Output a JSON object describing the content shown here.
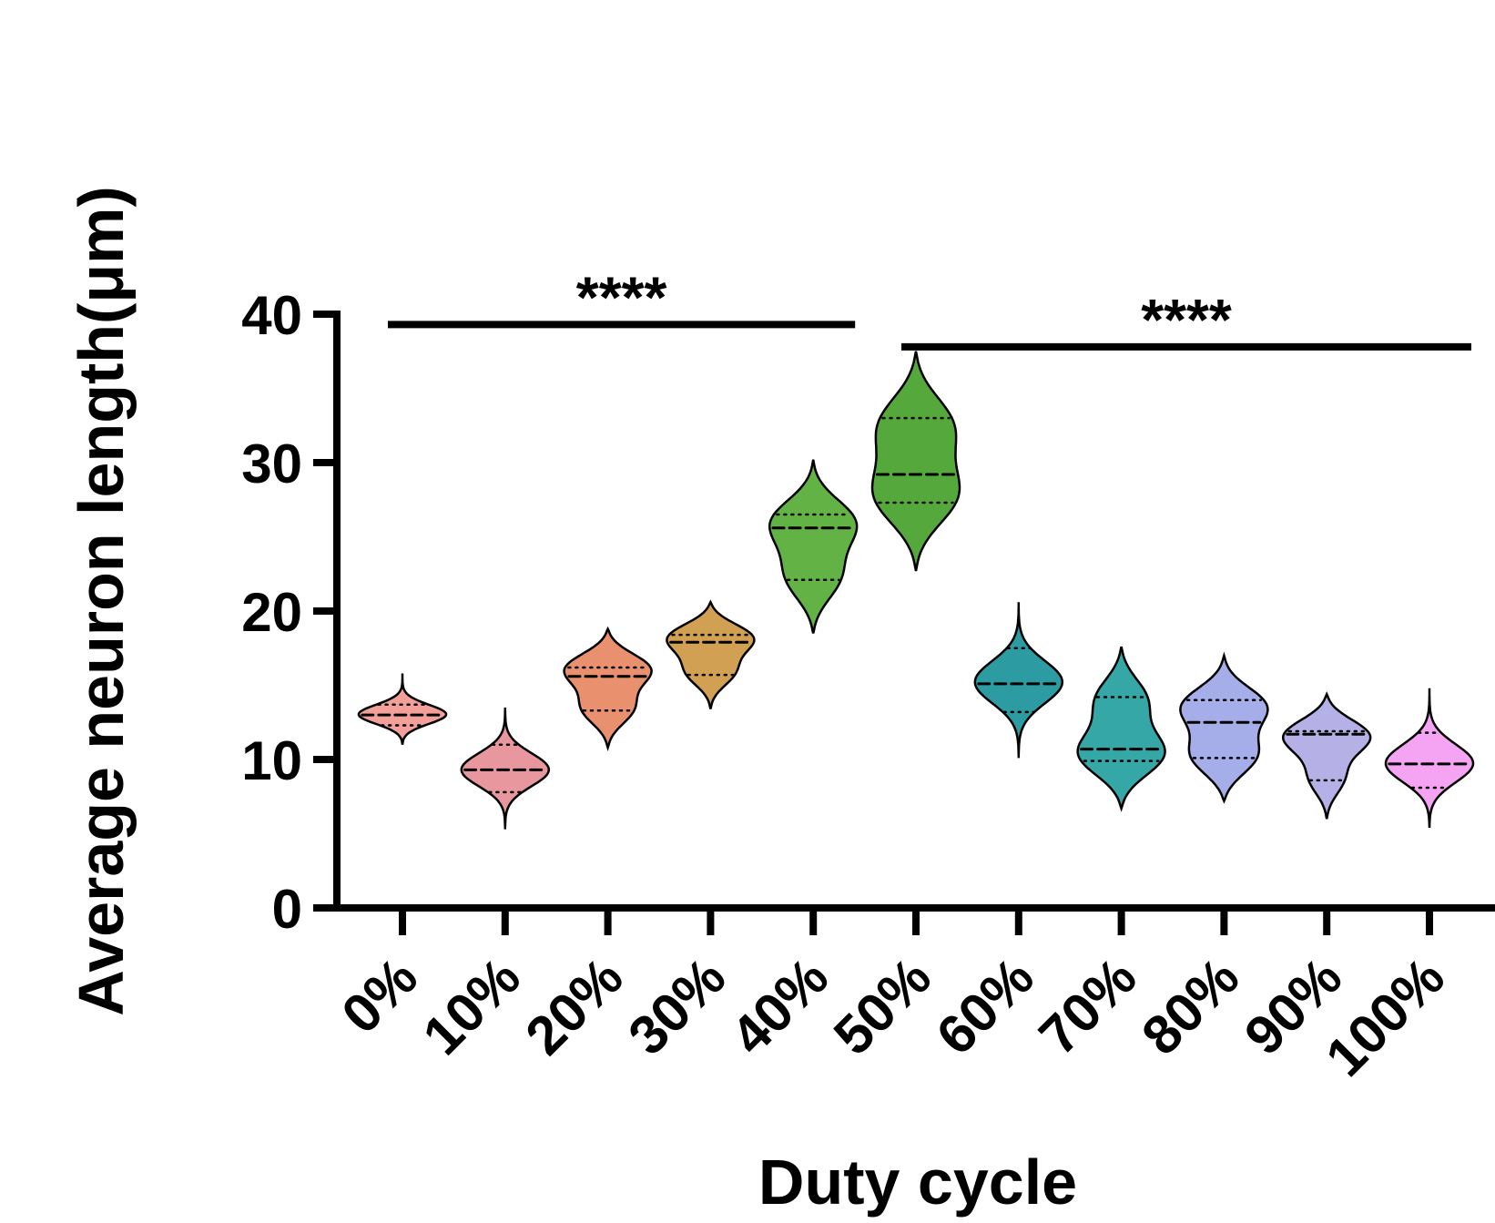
{
  "chart_data": {
    "type": "violin",
    "title": "",
    "xlabel": "Duty cycle",
    "ylabel": "Average neuron length(μm)",
    "ylim": [
      0,
      40
    ],
    "yticks": [
      "0",
      "10",
      "20",
      "30",
      "40"
    ],
    "categories": [
      "0%",
      "10%",
      "20%",
      "30%",
      "40%",
      "50%",
      "60%",
      "70%",
      "80%",
      "90%",
      "100%"
    ],
    "violins": [
      {
        "category": "0%",
        "color": "#F4A09A",
        "min": 11.0,
        "max": 15.8,
        "q1": 12.3,
        "median": 13.0,
        "q3": 13.7,
        "modes": [
          13.0
        ],
        "widths": [
          1.0
        ]
      },
      {
        "category": "10%",
        "color": "#E8979F",
        "min": 5.3,
        "max": 13.5,
        "q1": 7.8,
        "median": 9.3,
        "q3": 11.0,
        "modes": [
          9.3
        ],
        "widths": [
          1.0
        ]
      },
      {
        "category": "20%",
        "color": "#E9916E",
        "min": 10.8,
        "max": 18.8,
        "q1": 13.3,
        "median": 15.6,
        "q3": 16.2,
        "modes": [
          13.3,
          16.2
        ],
        "widths": [
          0.6,
          1.0
        ]
      },
      {
        "category": "30%",
        "color": "#D2A052",
        "min": 13.4,
        "max": 20.6,
        "q1": 15.7,
        "median": 17.9,
        "q3": 18.4,
        "modes": [
          15.8,
          18.3
        ],
        "widths": [
          0.55,
          1.0
        ]
      },
      {
        "category": "40%",
        "color": "#62B246",
        "min": 18.5,
        "max": 30.2,
        "q1": 22.1,
        "median": 25.6,
        "q3": 26.5,
        "modes": [
          22.1,
          26.1
        ],
        "widths": [
          0.65,
          1.0
        ]
      },
      {
        "category": "50%",
        "color": "#55A83C",
        "min": 22.7,
        "max": 37.5,
        "q1": 27.3,
        "median": 29.2,
        "q3": 33.0,
        "modes": [
          27.6,
          32.7
        ],
        "widths": [
          1.0,
          0.9
        ]
      },
      {
        "category": "60%",
        "color": "#2C9CA2",
        "min": 10.1,
        "max": 20.6,
        "q1": 13.2,
        "median": 15.1,
        "q3": 17.5,
        "modes": [
          15.2
        ],
        "widths": [
          1.0
        ]
      },
      {
        "category": "70%",
        "color": "#34A7A6",
        "min": 6.7,
        "max": 17.6,
        "q1": 9.9,
        "median": 10.7,
        "q3": 14.2,
        "modes": [
          10.2,
          14.2
        ],
        "widths": [
          1.0,
          0.6
        ]
      },
      {
        "category": "80%",
        "color": "#A6AEEA",
        "min": 7.2,
        "max": 17.0,
        "q1": 10.1,
        "median": 12.5,
        "q3": 14.0,
        "modes": [
          10.1,
          13.7
        ],
        "widths": [
          0.8,
          1.0
        ]
      },
      {
        "category": "90%",
        "color": "#B5B1E6",
        "min": 6.0,
        "max": 14.4,
        "q1": 8.6,
        "median": 11.7,
        "q3": 11.9,
        "modes": [
          8.6,
          11.7
        ],
        "widths": [
          0.4,
          1.0
        ]
      },
      {
        "category": "100%",
        "color": "#F5A4F3",
        "min": 5.4,
        "max": 14.8,
        "q1": 8.1,
        "median": 9.7,
        "q3": 11.8,
        "modes": [
          9.7
        ],
        "widths": [
          1.0
        ]
      }
    ],
    "significance": [
      {
        "label": "****",
        "from": "0%",
        "to": "40%",
        "level": 39.3
      },
      {
        "label": "****",
        "from": "50%",
        "to": "100%",
        "level": 37.8
      }
    ],
    "grid": false,
    "legend": "none"
  }
}
